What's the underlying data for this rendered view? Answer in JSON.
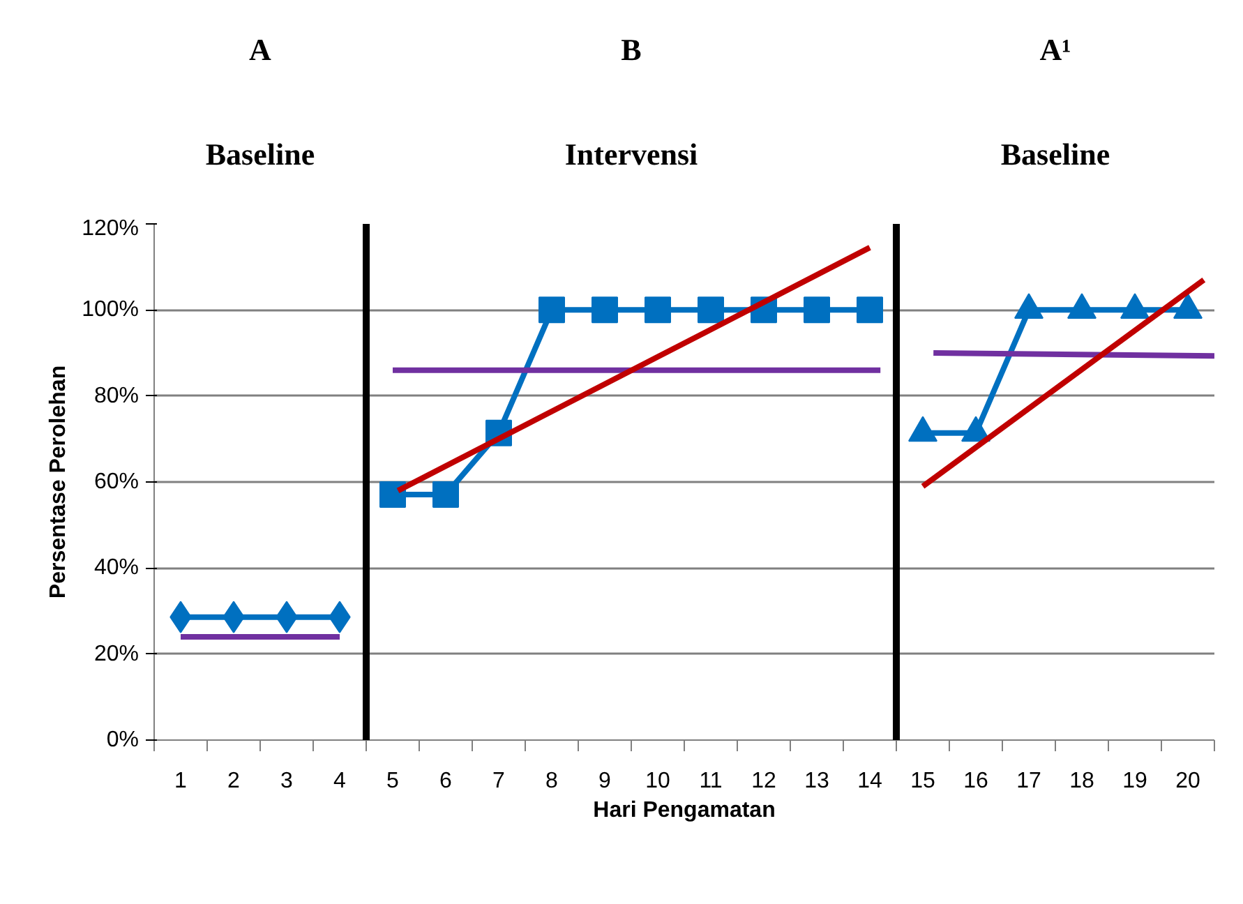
{
  "chart_data": {
    "type": "line",
    "xlabel": "Hari Pengamatan",
    "ylabel": "Persentase Perolehan",
    "annotations": [
      "A",
      "B",
      "A¹",
      "Baseline",
      "Intervensi",
      "Baseline"
    ],
    "x": [
      1,
      2,
      3,
      4,
      5,
      6,
      7,
      8,
      9,
      10,
      11,
      12,
      13,
      14,
      15,
      16,
      17,
      18,
      19,
      20
    ],
    "series": [
      {
        "color": "#0070c0",
        "marker": "diamond",
        "values": [
          28.6,
          28.6,
          28.6,
          28.6,
          null,
          null,
          null,
          null,
          null,
          null,
          null,
          null,
          null,
          null,
          null,
          null,
          null,
          null,
          null,
          null
        ]
      },
      {
        "color": "#0070c0",
        "marker": "square",
        "values": [
          null,
          null,
          null,
          null,
          57.1,
          57.1,
          71.4,
          100,
          100,
          100,
          100,
          100,
          100,
          100,
          null,
          null,
          null,
          null,
          null,
          null
        ]
      },
      {
        "color": "#0070c0",
        "marker": "triangle",
        "values": [
          null,
          null,
          null,
          null,
          null,
          null,
          null,
          null,
          null,
          null,
          null,
          null,
          null,
          null,
          71.4,
          71.4,
          100,
          100,
          100,
          100
        ]
      },
      {
        "color": "#7030a0",
        "marker": "none",
        "x": [
          1,
          4
        ],
        "values": [
          24,
          24
        ]
      },
      {
        "color": "#7030a0",
        "marker": "none",
        "x": [
          5,
          14.2
        ],
        "values": [
          86,
          86
        ]
      },
      {
        "color": "#7030a0",
        "marker": "none",
        "x": [
          15.2,
          20.5
        ],
        "values": [
          90,
          89.3
        ]
      },
      {
        "color": "#c00000",
        "marker": "none",
        "x": [
          5.1,
          14
        ],
        "values": [
          58,
          114.5
        ]
      },
      {
        "color": "#c00000",
        "marker": "none",
        "x": [
          15,
          20.3
        ],
        "values": [
          59,
          107
        ]
      }
    ],
    "ref_lines": [
      {
        "axis": "x",
        "value": 4.5,
        "color": "#000000"
      },
      {
        "axis": "x",
        "value": 14.5,
        "color": "#000000"
      }
    ],
    "xlim": [
      0.5,
      20.5
    ],
    "xticks": [
      1,
      2,
      3,
      4,
      5,
      6,
      7,
      8,
      9,
      10,
      11,
      12,
      13,
      14,
      15,
      16,
      17,
      18,
      19,
      20,
      {
        "value": 0.5,
        "label": null
      },
      {
        "value": 1.5,
        "label": null
      },
      {
        "value": 2.5,
        "label": null
      },
      {
        "value": 3.5,
        "label": null
      },
      {
        "value": 4.5,
        "label": null
      },
      {
        "value": 5.5,
        "label": null
      },
      {
        "value": 6.5,
        "label": null
      },
      {
        "value": 7.5,
        "label": null
      },
      {
        "value": 8.5,
        "label": null
      },
      {
        "value": 9.5,
        "label": null
      },
      {
        "value": 10.5,
        "label": null
      },
      {
        "value": 11.5,
        "label": null
      },
      {
        "value": 12.5,
        "label": null
      },
      {
        "value": 13.5,
        "label": null
      },
      {
        "value": 14.5,
        "label": null
      },
      {
        "value": 15.5,
        "label": null
      },
      {
        "value": 16.5,
        "label": null
      },
      {
        "value": 17.5,
        "label": null
      },
      {
        "value": 18.5,
        "label": null
      },
      {
        "value": 19.5,
        "label": null
      },
      {
        "value": 20.5,
        "label": null
      }
    ],
    "ylim": [
      0,
      120
    ],
    "yticks": [
      {
        "value": 0,
        "label": "0%"
      },
      {
        "value": 20,
        "label": "20%"
      },
      {
        "value": 40,
        "label": "40%"
      },
      {
        "value": 60,
        "label": "60%"
      },
      {
        "value": 80,
        "label": "80%"
      },
      {
        "value": 100,
        "label": "100%"
      },
      {
        "value": 120,
        "label": "120%"
      }
    ],
    "grid": "y"
  }
}
